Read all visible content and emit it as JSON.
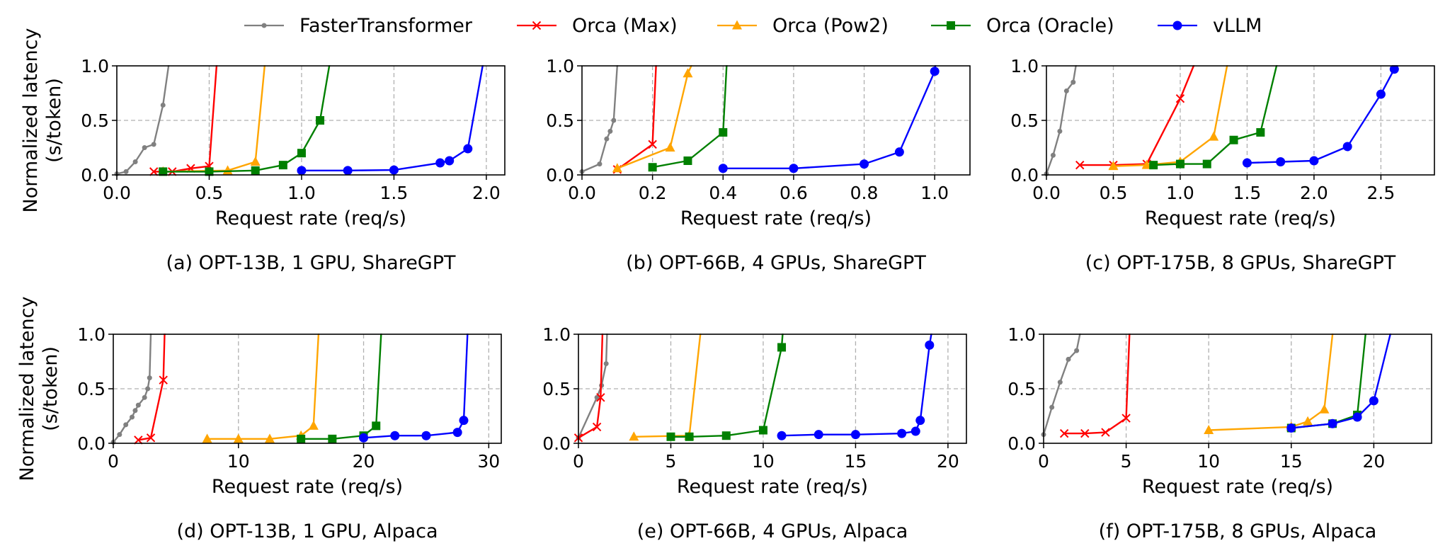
{
  "legend": [
    {
      "name": "FasterTransformer",
      "color": "#808080",
      "marker": "dot"
    },
    {
      "name": "Orca (Max)",
      "color": "#ff0000",
      "marker": "x"
    },
    {
      "name": "Orca (Pow2)",
      "color": "#ffa500",
      "marker": "triangle"
    },
    {
      "name": "Orca (Oracle)",
      "color": "#008000",
      "marker": "square"
    },
    {
      "name": "vLLM",
      "color": "#0000ff",
      "marker": "circle"
    }
  ],
  "y_label_line1": "Normalized latency",
  "y_label_line2": "(s/token)",
  "chart_data": [
    {
      "type": "line",
      "caption": "(a) OPT-13B, 1 GPU, ShareGPT",
      "xlabel": "Request rate (req/s)",
      "xlim": [
        0,
        2.1
      ],
      "ylim": [
        0,
        1.0
      ],
      "xticks": [
        0.0,
        0.5,
        1.0,
        1.5,
        2.0
      ],
      "xtick_labels": [
        "0.0",
        "0.5",
        "1.0",
        "1.5",
        "2.0"
      ],
      "yticks": [
        0.0,
        0.5,
        1.0
      ],
      "ytick_labels": [
        "0.0",
        "0.5",
        "1.0"
      ],
      "series": [
        {
          "name": "FasterTransformer",
          "points": [
            [
              0,
              0.01
            ],
            [
              0.05,
              0.03
            ],
            [
              0.1,
              0.12
            ],
            [
              0.15,
              0.25
            ],
            [
              0.2,
              0.28
            ],
            [
              0.25,
              0.64
            ],
            [
              0.28,
              1.0
            ],
            [
              0.29,
              1.25
            ]
          ]
        },
        {
          "name": "Orca (Max)",
          "points": [
            [
              0.2,
              0.03
            ],
            [
              0.3,
              0.03
            ],
            [
              0.4,
              0.06
            ],
            [
              0.5,
              0.08
            ],
            [
              0.54,
              1.0
            ],
            [
              0.55,
              1.25
            ]
          ]
        },
        {
          "name": "Orca (Pow2)",
          "points": [
            [
              0.25,
              0.03
            ],
            [
              0.6,
              0.04
            ],
            [
              0.75,
              0.12
            ],
            [
              0.8,
              1.0
            ],
            [
              0.81,
              1.25
            ]
          ]
        },
        {
          "name": "Orca (Oracle)",
          "points": [
            [
              0.25,
              0.03
            ],
            [
              0.5,
              0.03
            ],
            [
              0.75,
              0.04
            ],
            [
              0.9,
              0.09
            ],
            [
              1.0,
              0.2
            ],
            [
              1.1,
              0.5
            ],
            [
              1.15,
              1.0
            ],
            [
              1.16,
              1.25
            ]
          ]
        },
        {
          "name": "vLLM",
          "points": [
            [
              1.0,
              0.04
            ],
            [
              1.25,
              0.04
            ],
            [
              1.5,
              0.045
            ],
            [
              1.75,
              0.11
            ],
            [
              1.8,
              0.13
            ],
            [
              1.9,
              0.24
            ],
            [
              1.98,
              1.0
            ],
            [
              1.99,
              1.25
            ]
          ]
        }
      ]
    },
    {
      "type": "line",
      "caption": "(b) OPT-66B, 4 GPUs, ShareGPT",
      "xlabel": "Request rate (req/s)",
      "xlim": [
        0,
        1.1
      ],
      "ylim": [
        0,
        1.0
      ],
      "xticks": [
        0.0,
        0.2,
        0.4,
        0.6,
        0.8,
        1.0
      ],
      "xtick_labels": [
        "0.0",
        "0.2",
        "0.4",
        "0.6",
        "0.8",
        "1.0"
      ],
      "yticks": [
        0.0,
        0.5,
        1.0
      ],
      "ytick_labels": [
        "0.0",
        "0.5",
        "1.0"
      ],
      "series": [
        {
          "name": "FasterTransformer",
          "points": [
            [
              0,
              0.03
            ],
            [
              0.05,
              0.1
            ],
            [
              0.07,
              0.33
            ],
            [
              0.08,
              0.4
            ],
            [
              0.09,
              0.5
            ],
            [
              0.1,
              1.0
            ],
            [
              0.11,
              1.25
            ]
          ]
        },
        {
          "name": "Orca (Max)",
          "points": [
            [
              0.1,
              0.05
            ],
            [
              0.2,
              0.28
            ],
            [
              0.21,
              1.0
            ],
            [
              0.215,
              1.25
            ]
          ]
        },
        {
          "name": "Orca (Pow2)",
          "points": [
            [
              0.1,
              0.06
            ],
            [
              0.25,
              0.25
            ],
            [
              0.3,
              0.93
            ],
            [
              0.31,
              1.0
            ],
            [
              0.315,
              1.25
            ]
          ]
        },
        {
          "name": "Orca (Oracle)",
          "points": [
            [
              0.2,
              0.07
            ],
            [
              0.3,
              0.13
            ],
            [
              0.4,
              0.39
            ],
            [
              0.41,
              1.0
            ],
            [
              0.415,
              1.25
            ]
          ]
        },
        {
          "name": "vLLM",
          "points": [
            [
              0.4,
              0.06
            ],
            [
              0.6,
              0.06
            ],
            [
              0.8,
              0.1
            ],
            [
              0.9,
              0.21
            ],
            [
              1.0,
              0.95
            ],
            [
              1.01,
              1.25
            ]
          ]
        }
      ]
    },
    {
      "type": "line",
      "caption": "(c) OPT-175B, 8 GPUs, ShareGPT",
      "xlabel": "Request rate (req/s)",
      "xlim": [
        0,
        2.9
      ],
      "ylim": [
        0,
        1.0
      ],
      "xticks": [
        0.0,
        0.5,
        1.0,
        1.5,
        2.0,
        2.5
      ],
      "xtick_labels": [
        "0.0",
        "0.5",
        "1.0",
        "1.5",
        "2.0",
        "2.5"
      ],
      "yticks": [
        0.0,
        0.5,
        1.0
      ],
      "ytick_labels": [
        "0.0",
        "0.5",
        "1.0"
      ],
      "series": [
        {
          "name": "FasterTransformer",
          "points": [
            [
              0,
              0.01
            ],
            [
              0.05,
              0.18
            ],
            [
              0.1,
              0.4
            ],
            [
              0.15,
              0.77
            ],
            [
              0.2,
              0.85
            ],
            [
              0.22,
              1.0
            ],
            [
              0.23,
              1.25
            ]
          ]
        },
        {
          "name": "Orca (Max)",
          "points": [
            [
              0.25,
              0.09
            ],
            [
              0.5,
              0.09
            ],
            [
              0.75,
              0.1
            ],
            [
              1.0,
              0.7
            ],
            [
              1.1,
              1.0
            ],
            [
              1.12,
              1.25
            ]
          ]
        },
        {
          "name": "Orca (Pow2)",
          "points": [
            [
              0.5,
              0.08
            ],
            [
              0.75,
              0.09
            ],
            [
              1.0,
              0.12
            ],
            [
              1.25,
              0.35
            ],
            [
              1.35,
              1.0
            ],
            [
              1.37,
              1.25
            ]
          ]
        },
        {
          "name": "Orca (Oracle)",
          "points": [
            [
              0.8,
              0.09
            ],
            [
              1.0,
              0.1
            ],
            [
              1.2,
              0.1
            ],
            [
              1.4,
              0.32
            ],
            [
              1.6,
              0.39
            ],
            [
              1.72,
              1.0
            ],
            [
              1.75,
              1.25
            ]
          ]
        },
        {
          "name": "vLLM",
          "points": [
            [
              1.5,
              0.11
            ],
            [
              1.75,
              0.12
            ],
            [
              2.0,
              0.13
            ],
            [
              2.25,
              0.26
            ],
            [
              2.5,
              0.74
            ],
            [
              2.6,
              0.97
            ],
            [
              2.62,
              1.0
            ],
            [
              2.65,
              1.25
            ]
          ]
        }
      ]
    },
    {
      "type": "line",
      "caption": "(d) OPT-13B, 1 GPU, Alpaca",
      "xlabel": "Request rate (req/s)",
      "xlim": [
        0,
        31
      ],
      "ylim": [
        0,
        1.0
      ],
      "xticks": [
        0,
        10,
        20,
        30
      ],
      "xtick_labels": [
        "0",
        "10",
        "20",
        "30"
      ],
      "yticks": [
        0.0,
        0.5,
        1.0
      ],
      "ytick_labels": [
        "0.0",
        "0.5",
        "1.0"
      ],
      "series": [
        {
          "name": "FasterTransformer",
          "points": [
            [
              0,
              0.01
            ],
            [
              0.5,
              0.08
            ],
            [
              1,
              0.17
            ],
            [
              1.5,
              0.24
            ],
            [
              1.75,
              0.3
            ],
            [
              2,
              0.35
            ],
            [
              2.5,
              0.42
            ],
            [
              2.75,
              0.5
            ],
            [
              2.9,
              0.6
            ],
            [
              3.0,
              1.0
            ],
            [
              3.05,
              1.25
            ]
          ]
        },
        {
          "name": "Orca (Max)",
          "points": [
            [
              2,
              0.03
            ],
            [
              3,
              0.05
            ],
            [
              4,
              0.58
            ],
            [
              4.1,
              1.0
            ],
            [
              4.12,
              1.25
            ]
          ]
        },
        {
          "name": "Orca (Pow2)",
          "points": [
            [
              7.5,
              0.04
            ],
            [
              10,
              0.04
            ],
            [
              12.5,
              0.04
            ],
            [
              15,
              0.07
            ],
            [
              16,
              0.16
            ],
            [
              16.4,
              1.0
            ],
            [
              16.5,
              1.25
            ]
          ]
        },
        {
          "name": "Orca (Oracle)",
          "points": [
            [
              15,
              0.04
            ],
            [
              17.5,
              0.04
            ],
            [
              20,
              0.07
            ],
            [
              21,
              0.16
            ],
            [
              21.4,
              1.0
            ],
            [
              21.5,
              1.25
            ]
          ]
        },
        {
          "name": "vLLM",
          "points": [
            [
              20,
              0.05
            ],
            [
              22.5,
              0.07
            ],
            [
              25,
              0.07
            ],
            [
              27.5,
              0.1
            ],
            [
              28,
              0.21
            ],
            [
              28.3,
              1.0
            ],
            [
              28.35,
              1.25
            ]
          ]
        }
      ]
    },
    {
      "type": "line",
      "caption": "(e) OPT-66B, 4 GPUs, Alpaca",
      "xlabel": "Request rate (req/s)",
      "xlim": [
        0,
        21
      ],
      "ylim": [
        0,
        1.0
      ],
      "xticks": [
        0,
        5,
        10,
        15,
        20
      ],
      "xtick_labels": [
        "0",
        "5",
        "10",
        "15",
        "20"
      ],
      "yticks": [
        0.0,
        0.5,
        1.0
      ],
      "ytick_labels": [
        "0.0",
        "0.5",
        "1.0"
      ],
      "series": [
        {
          "name": "FasterTransformer",
          "points": [
            [
              0,
              0.05
            ],
            [
              1,
              0.42
            ],
            [
              1.25,
              0.53
            ],
            [
              1.5,
              0.73
            ],
            [
              1.55,
              1.0
            ],
            [
              1.6,
              1.25
            ]
          ]
        },
        {
          "name": "Orca (Max)",
          "points": [
            [
              0,
              0.05
            ],
            [
              1,
              0.15
            ],
            [
              1.2,
              0.42
            ],
            [
              1.3,
              1.0
            ],
            [
              1.35,
              1.25
            ]
          ]
        },
        {
          "name": "Orca (Pow2)",
          "points": [
            [
              3,
              0.06
            ],
            [
              6,
              0.07
            ],
            [
              6.6,
              1.0
            ],
            [
              6.7,
              1.25
            ]
          ]
        },
        {
          "name": "Orca (Oracle)",
          "points": [
            [
              5,
              0.06
            ],
            [
              6,
              0.06
            ],
            [
              8,
              0.07
            ],
            [
              10,
              0.12
            ],
            [
              11,
              0.88
            ],
            [
              11.05,
              1.0
            ],
            [
              11.1,
              1.25
            ]
          ]
        },
        {
          "name": "vLLM",
          "points": [
            [
              11,
              0.07
            ],
            [
              13,
              0.08
            ],
            [
              15,
              0.08
            ],
            [
              17.5,
              0.09
            ],
            [
              18.25,
              0.11
            ],
            [
              18.5,
              0.21
            ],
            [
              19,
              0.9
            ],
            [
              19.1,
              1.0
            ],
            [
              19.15,
              1.25
            ]
          ]
        }
      ]
    },
    {
      "type": "line",
      "caption": "(f) OPT-175B, 8 GPUs, Alpaca",
      "xlabel": "Request rate (req/s)",
      "xlim": [
        0,
        23.5
      ],
      "ylim": [
        0,
        1.0
      ],
      "xticks": [
        0,
        5,
        10,
        15,
        20
      ],
      "xtick_labels": [
        "0",
        "5",
        "10",
        "15",
        "20"
      ],
      "yticks": [
        0.0,
        0.5,
        1.0
      ],
      "ytick_labels": [
        "0.0",
        "0.5",
        "1.0"
      ],
      "series": [
        {
          "name": "FasterTransformer",
          "points": [
            [
              0,
              0.08
            ],
            [
              0.5,
              0.33
            ],
            [
              1,
              0.56
            ],
            [
              1.5,
              0.77
            ],
            [
              2,
              0.85
            ],
            [
              2.2,
              1.0
            ],
            [
              2.3,
              1.25
            ]
          ]
        },
        {
          "name": "Orca (Max)",
          "points": [
            [
              1.25,
              0.09
            ],
            [
              2.5,
              0.09
            ],
            [
              3.75,
              0.1
            ],
            [
              5,
              0.23
            ],
            [
              5.2,
              1.0
            ],
            [
              5.25,
              1.25
            ]
          ]
        },
        {
          "name": "Orca (Pow2)",
          "points": [
            [
              10,
              0.12
            ],
            [
              15,
              0.15
            ],
            [
              16,
              0.2
            ],
            [
              17,
              0.31
            ],
            [
              17.5,
              1.0
            ],
            [
              17.6,
              1.25
            ]
          ]
        },
        {
          "name": "Orca (Oracle)",
          "points": [
            [
              15,
              0.14
            ],
            [
              17.5,
              0.18
            ],
            [
              19,
              0.26
            ],
            [
              19.5,
              1.0
            ],
            [
              19.6,
              1.25
            ]
          ]
        },
        {
          "name": "vLLM",
          "points": [
            [
              15,
              0.14
            ],
            [
              17.5,
              0.18
            ],
            [
              19,
              0.24
            ],
            [
              20,
              0.39
            ],
            [
              21,
              1.0
            ],
            [
              21.2,
              1.25
            ]
          ]
        }
      ]
    }
  ]
}
